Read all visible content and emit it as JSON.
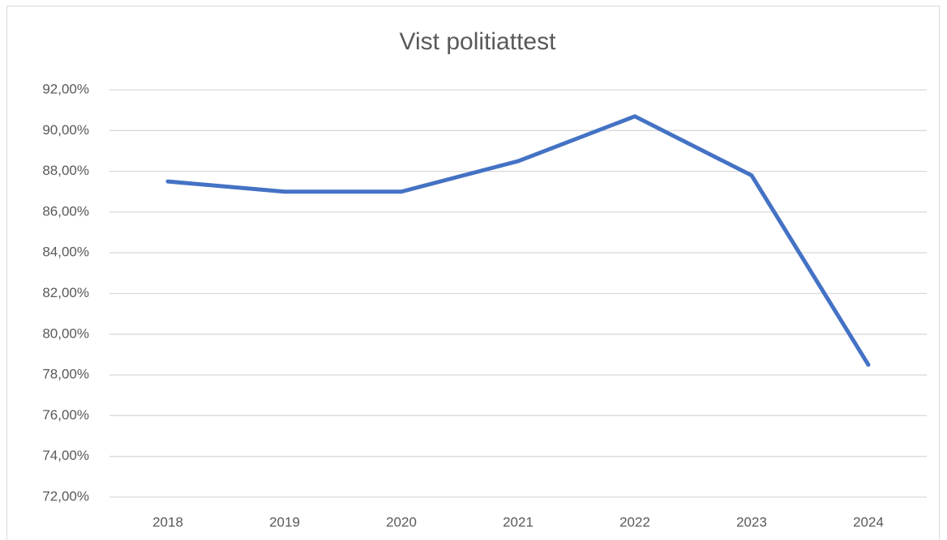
{
  "chart_data": {
    "type": "line",
    "title": "Vist politiattest",
    "categories": [
      "2018",
      "2019",
      "2020",
      "2021",
      "2022",
      "2023",
      "2024"
    ],
    "series": [
      {
        "name": "Vist politiattest",
        "color": "#4472c4",
        "values": [
          87.5,
          87.0,
          87.0,
          88.5,
          90.7,
          87.8,
          78.5
        ]
      }
    ],
    "ylim": [
      72,
      92
    ],
    "yticks": [
      {
        "value": 72,
        "label": "72,00%"
      },
      {
        "value": 74,
        "label": "74,00%"
      },
      {
        "value": 76,
        "label": "76,00%"
      },
      {
        "value": 78,
        "label": "78,00%"
      },
      {
        "value": 80,
        "label": "80,00%"
      },
      {
        "value": 82,
        "label": "82,00%"
      },
      {
        "value": 84,
        "label": "84,00%"
      },
      {
        "value": 86,
        "label": "86,00%"
      },
      {
        "value": 88,
        "label": "88,00%"
      },
      {
        "value": 90,
        "label": "90,00%"
      },
      {
        "value": 92,
        "label": "92,00%"
      }
    ],
    "grid": true
  }
}
